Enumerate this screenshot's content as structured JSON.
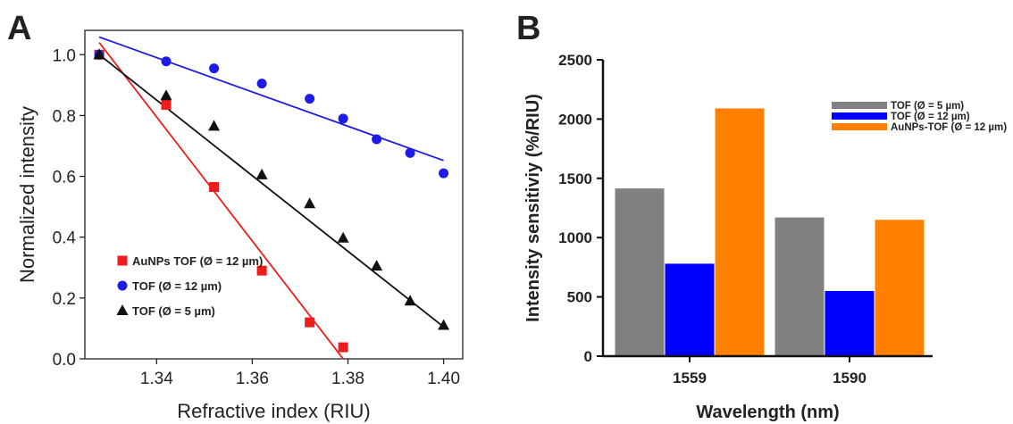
{
  "chart_data": [
    {
      "panel": "A",
      "type": "scatter",
      "xlabel": "Refractive index (RIU)",
      "ylabel": "Normalized intensity",
      "xlim": [
        1.325,
        1.404
      ],
      "ylim": [
        0,
        1.08
      ],
      "xticks": [
        "1.34",
        "1.36",
        "1.38",
        "1.40"
      ],
      "xtick_values": [
        1.34,
        1.36,
        1.38,
        1.4
      ],
      "yticks": [
        "0.0",
        "0.2",
        "0.4",
        "0.6",
        "0.8",
        "1.0"
      ],
      "ytick_values": [
        0.0,
        0.2,
        0.4,
        0.6,
        0.8,
        1.0
      ],
      "grid": false,
      "legend_position": "bottom-left",
      "series": [
        {
          "name": "AuNPs TOF (Ø = 12 µm)",
          "marker": "square",
          "color": "#ee1c1c",
          "points": [
            [
              1.328,
              1.0
            ],
            [
              1.342,
              0.835
            ],
            [
              1.352,
              0.565
            ],
            [
              1.362,
              0.29
            ],
            [
              1.372,
              0.12
            ],
            [
              1.379,
              0.038
            ]
          ],
          "fit": [
            [
              1.328,
              1.04
            ],
            [
              1.379,
              0.0
            ]
          ]
        },
        {
          "name": "TOF (Ø = 12 µm)",
          "marker": "circle",
          "color": "#1c1ce6",
          "points": [
            [
              1.328,
              1.0
            ],
            [
              1.342,
              0.978
            ],
            [
              1.352,
              0.955
            ],
            [
              1.362,
              0.905
            ],
            [
              1.372,
              0.855
            ],
            [
              1.379,
              0.79
            ],
            [
              1.386,
              0.722
            ],
            [
              1.393,
              0.677
            ],
            [
              1.4,
              0.61
            ]
          ],
          "fit": [
            [
              1.328,
              1.058
            ],
            [
              1.4,
              0.652
            ]
          ]
        },
        {
          "name": "TOF (Ø = 5 µm)",
          "marker": "triangle",
          "color": "#111111",
          "points": [
            [
              1.328,
              1.0
            ],
            [
              1.342,
              0.865
            ],
            [
              1.352,
              0.765
            ],
            [
              1.362,
              0.605
            ],
            [
              1.372,
              0.51
            ],
            [
              1.379,
              0.397
            ],
            [
              1.386,
              0.305
            ],
            [
              1.393,
              0.19
            ],
            [
              1.4,
              0.11
            ]
          ],
          "fit": [
            [
              1.328,
              1.0
            ],
            [
              1.4,
              0.105
            ]
          ]
        }
      ]
    },
    {
      "panel": "B",
      "type": "bar",
      "xlabel": "Wavelength (nm)",
      "ylabel": "Intensity sensitiviy (%/RIU)",
      "categories": [
        "1559",
        "1590"
      ],
      "ylim": [
        0,
        2500
      ],
      "yticks": [
        "0",
        "500",
        "1000",
        "1500",
        "2000",
        "2500"
      ],
      "ytick_values": [
        0,
        500,
        1000,
        1500,
        2000,
        2500
      ],
      "grid": false,
      "legend_position": "top-right",
      "series": [
        {
          "name": "TOF (Ø = 5 µm)",
          "color": "#808080",
          "values": [
            1415,
            1170
          ]
        },
        {
          "name": "TOF (Ø = 12 µm)",
          "color": "#0000ff",
          "values": [
            780,
            550
          ]
        },
        {
          "name": "AuNPs-TOF (Ø = 12 µm)",
          "color": "#ff8000",
          "values": [
            2090,
            1150
          ]
        }
      ]
    }
  ],
  "panel_labels": {
    "a": "A",
    "b": "B"
  }
}
